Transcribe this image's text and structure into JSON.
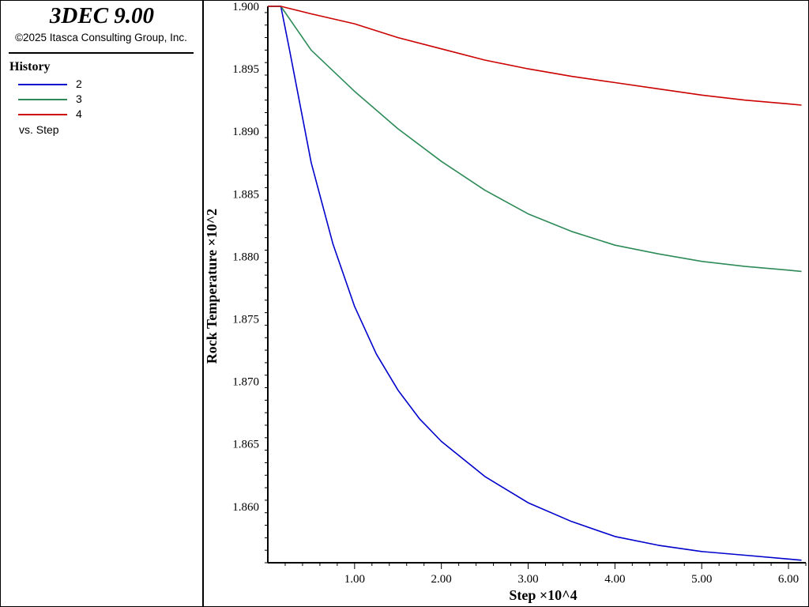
{
  "app": {
    "title": "3DEC 9.00",
    "copyright": "©2025 Itasca Consulting Group, Inc."
  },
  "legend": {
    "title": "History",
    "items": [
      {
        "label": "2",
        "color": "#0000cc"
      },
      {
        "label": "3",
        "color": "#2e8b57"
      },
      {
        "label": "4",
        "color": "#cc0000"
      }
    ],
    "vs_label": "vs. Step"
  },
  "chart_data": {
    "type": "line",
    "xlabel": "Step ×10^4",
    "ylabel": "Rock Temperature ×10^2",
    "xlim": [
      0,
      6.2
    ],
    "ylim": [
      1.8555,
      1.9
    ],
    "x_ticks": [
      "1.00",
      "2.00",
      "3.00",
      "4.00",
      "5.00",
      "6.00"
    ],
    "y_ticks": [
      "1.860",
      "1.865",
      "1.870",
      "1.875",
      "1.880",
      "1.885",
      "1.890",
      "1.895",
      "1.900"
    ],
    "grid": false,
    "series": [
      {
        "name": "2",
        "color": "#0000cc",
        "x": [
          0,
          0.15,
          0.25,
          0.5,
          0.75,
          1.0,
          1.25,
          1.5,
          1.75,
          2.0,
          2.5,
          3.0,
          3.5,
          4.0,
          4.5,
          5.0,
          5.5,
          6.0,
          6.15
        ],
        "y": [
          1.9,
          1.9,
          1.8965,
          1.8875,
          1.881,
          1.876,
          1.8722,
          1.8693,
          1.867,
          1.8652,
          1.8624,
          1.8603,
          1.8588,
          1.8576,
          1.8569,
          1.8564,
          1.8561,
          1.8558,
          1.8557
        ]
      },
      {
        "name": "3",
        "color": "#2e8b57",
        "x": [
          0,
          0.15,
          0.5,
          1.0,
          1.5,
          2.0,
          2.5,
          3.0,
          3.5,
          4.0,
          4.5,
          5.0,
          5.5,
          6.0,
          6.15
        ],
        "y": [
          1.9,
          1.9,
          1.8965,
          1.8932,
          1.8902,
          1.8876,
          1.8853,
          1.8834,
          1.882,
          1.8809,
          1.8802,
          1.8796,
          1.8792,
          1.8789,
          1.8788
        ]
      },
      {
        "name": "4",
        "color": "#cc0000",
        "x": [
          0,
          0.15,
          0.5,
          1.0,
          1.5,
          2.0,
          2.5,
          3.0,
          3.5,
          4.0,
          4.5,
          5.0,
          5.5,
          6.0,
          6.15
        ],
        "y": [
          1.9,
          1.9,
          1.8994,
          1.8986,
          1.8975,
          1.8966,
          1.8957,
          1.895,
          1.8944,
          1.8939,
          1.8934,
          1.8929,
          1.8925,
          1.8922,
          1.8921
        ]
      }
    ]
  }
}
